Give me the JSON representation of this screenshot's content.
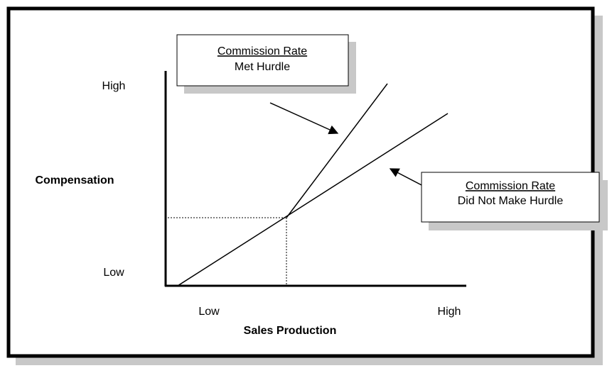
{
  "y_axis": {
    "label": "Compensation",
    "high": "High",
    "low": "Low"
  },
  "x_axis": {
    "label": "Sales Production",
    "low": "Low",
    "high": "High"
  },
  "callouts": [
    {
      "title": "Commission Rate",
      "text": "Met Hurdle"
    },
    {
      "title": "Commission Rate",
      "text": "Did Not Make Hurdle"
    }
  ]
}
